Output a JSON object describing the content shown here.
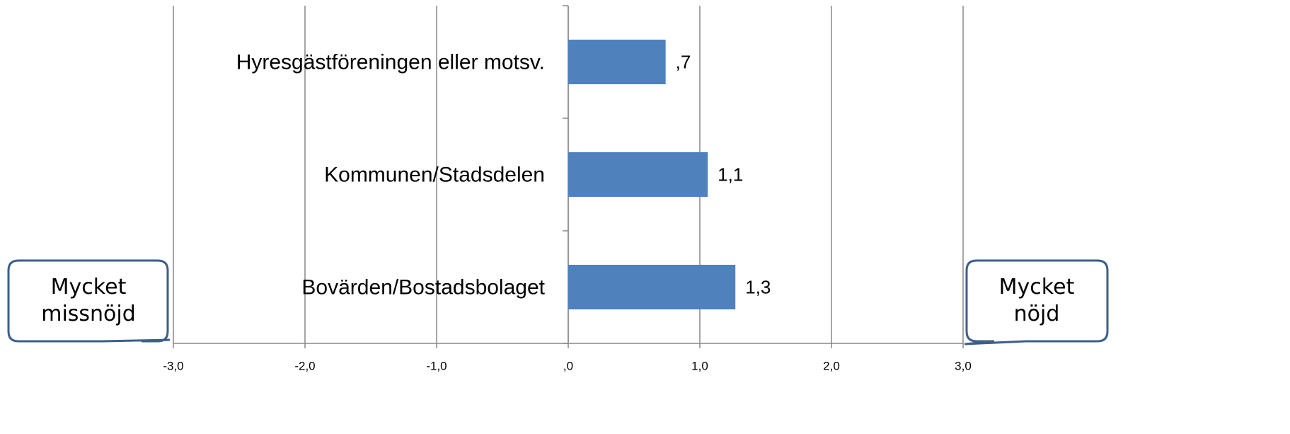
{
  "chart_data": {
    "type": "barh",
    "categories": [
      "Hyresgästföreningen eller motsv.",
      "Kommunen/Stadsdelen",
      "Bovärden/Bostadsbolaget"
    ],
    "values": [
      0.74,
      1.06,
      1.27
    ],
    "value_labels": [
      ",7",
      "1,1",
      "1,3"
    ],
    "color": "#4f81bd",
    "xlim": [
      -3,
      3
    ],
    "xticks": [
      {
        "value": -3,
        "label": "-3,0"
      },
      {
        "value": -2,
        "label": "-2,0"
      },
      {
        "value": -1,
        "label": "-1,0"
      },
      {
        "value": 0,
        "label": ",0"
      },
      {
        "value": 1,
        "label": "1,0"
      },
      {
        "value": 2,
        "label": "2,0"
      },
      {
        "value": 3,
        "label": "3,0"
      }
    ],
    "grid": true,
    "annotations": [
      "Mycket missnöjd",
      "Mycket nöjd"
    ]
  }
}
